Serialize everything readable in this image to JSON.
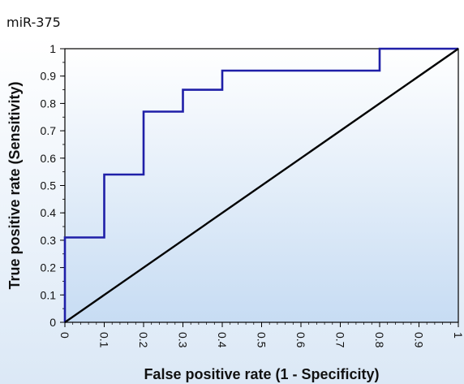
{
  "header": {
    "label": "miR-375"
  },
  "chart_data": {
    "type": "line",
    "xlabel": "False positive rate (1 - Specificity)",
    "ylabel": "True positive rate (Sensitivity)",
    "xlim": [
      0,
      1
    ],
    "ylim": [
      0,
      1
    ],
    "x_ticks": [
      "0",
      "0.1",
      "0.2",
      "0.3",
      "0.4",
      "0.5",
      "0.6",
      "0.7",
      "0.8",
      "0.9",
      "1"
    ],
    "y_ticks": [
      "0",
      "0.1",
      "0.2",
      "0.3",
      "0.4",
      "0.5",
      "0.6",
      "0.7",
      "0.8",
      "0.9",
      "1"
    ],
    "x_tick_label_orientation": "rotated",
    "grid": false,
    "series": [
      {
        "x": [
          0,
          0,
          0.1,
          0.1,
          0.2,
          0.2,
          0.3,
          0.3,
          0.4,
          0.4,
          0.8,
          0.8,
          1
        ],
        "y": [
          0,
          0.31,
          0.31,
          0.54,
          0.54,
          0.77,
          0.77,
          0.85,
          0.85,
          0.92,
          0.92,
          1,
          1
        ],
        "color": "#1f1fa8",
        "style": "step"
      },
      {
        "x": [
          0,
          1
        ],
        "y": [
          0,
          1
        ],
        "color": "#000000",
        "style": "line"
      }
    ],
    "colors": {
      "plot_background_top": "#ffffff",
      "plot_background_bottom": "#cfe0f4",
      "outer_background": "#dbe8f6"
    }
  }
}
